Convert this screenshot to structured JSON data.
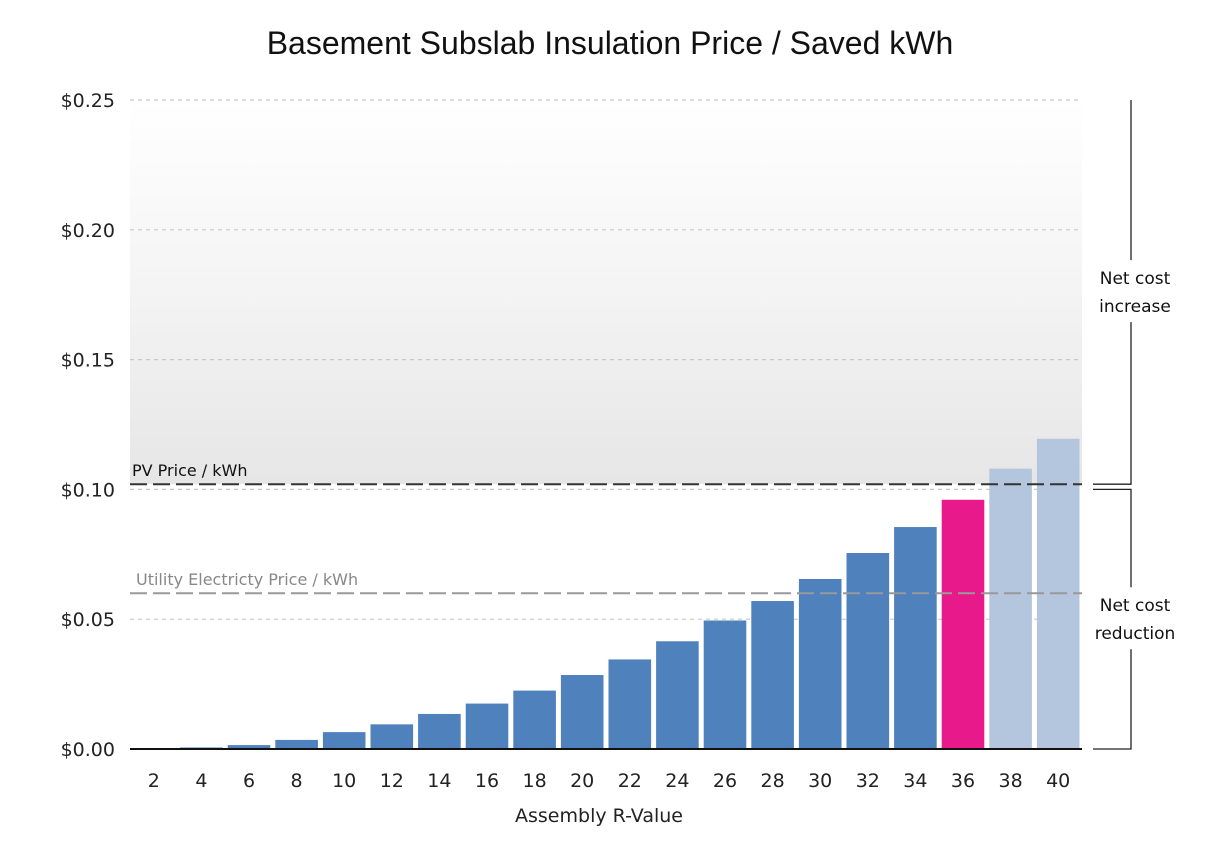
{
  "chart_data": {
    "type": "bar",
    "title": "Basement Subslab Insulation Price / Saved kWh",
    "xlabel": "Assembly R-Value",
    "ylabel": "",
    "ylim": [
      0,
      0.25
    ],
    "yticks": [
      0,
      0.05,
      0.1,
      0.15,
      0.2,
      0.25
    ],
    "ytick_labels": [
      "$0.00",
      "$0.05",
      "$0.10",
      "$0.15",
      "$0.20",
      "$0.25"
    ],
    "grid": true,
    "categories": [
      "2",
      "4",
      "6",
      "8",
      "10",
      "12",
      "14",
      "16",
      "18",
      "20",
      "22",
      "24",
      "26",
      "28",
      "30",
      "32",
      "34",
      "36",
      "38",
      "40"
    ],
    "values": [
      0.0003,
      0.0006,
      0.0015,
      0.0035,
      0.0065,
      0.0095,
      0.0135,
      0.0175,
      0.0225,
      0.0285,
      0.0345,
      0.0415,
      0.0495,
      0.057,
      0.0655,
      0.0755,
      0.0855,
      0.096,
      0.108,
      0.1195
    ],
    "bar_colors": [
      "#4f81bd",
      "#4f81bd",
      "#4f81bd",
      "#4f81bd",
      "#4f81bd",
      "#4f81bd",
      "#4f81bd",
      "#4f81bd",
      "#4f81bd",
      "#4f81bd",
      "#4f81bd",
      "#4f81bd",
      "#4f81bd",
      "#4f81bd",
      "#4f81bd",
      "#4f81bd",
      "#4f81bd",
      "#e8198b",
      "#b3c6de",
      "#b3c6de"
    ],
    "reference_lines": [
      {
        "label": "PV Price / kWh",
        "value": 0.102,
        "color": "#333333"
      },
      {
        "label": "Utility Electricty Price  / kWh",
        "value": 0.06,
        "color": "#999999"
      }
    ],
    "annotations": [
      {
        "label_lines": [
          "Net cost",
          "increase"
        ],
        "range": [
          0.102,
          0.25
        ]
      },
      {
        "label_lines": [
          "Net cost",
          "reduction"
        ],
        "range": [
          0,
          0.1
        ]
      }
    ],
    "colors": {
      "bar": "#4f81bd",
      "highlight": "#e8198b",
      "faded": "#b3c6de",
      "gridline": "#c8c8c8"
    }
  }
}
